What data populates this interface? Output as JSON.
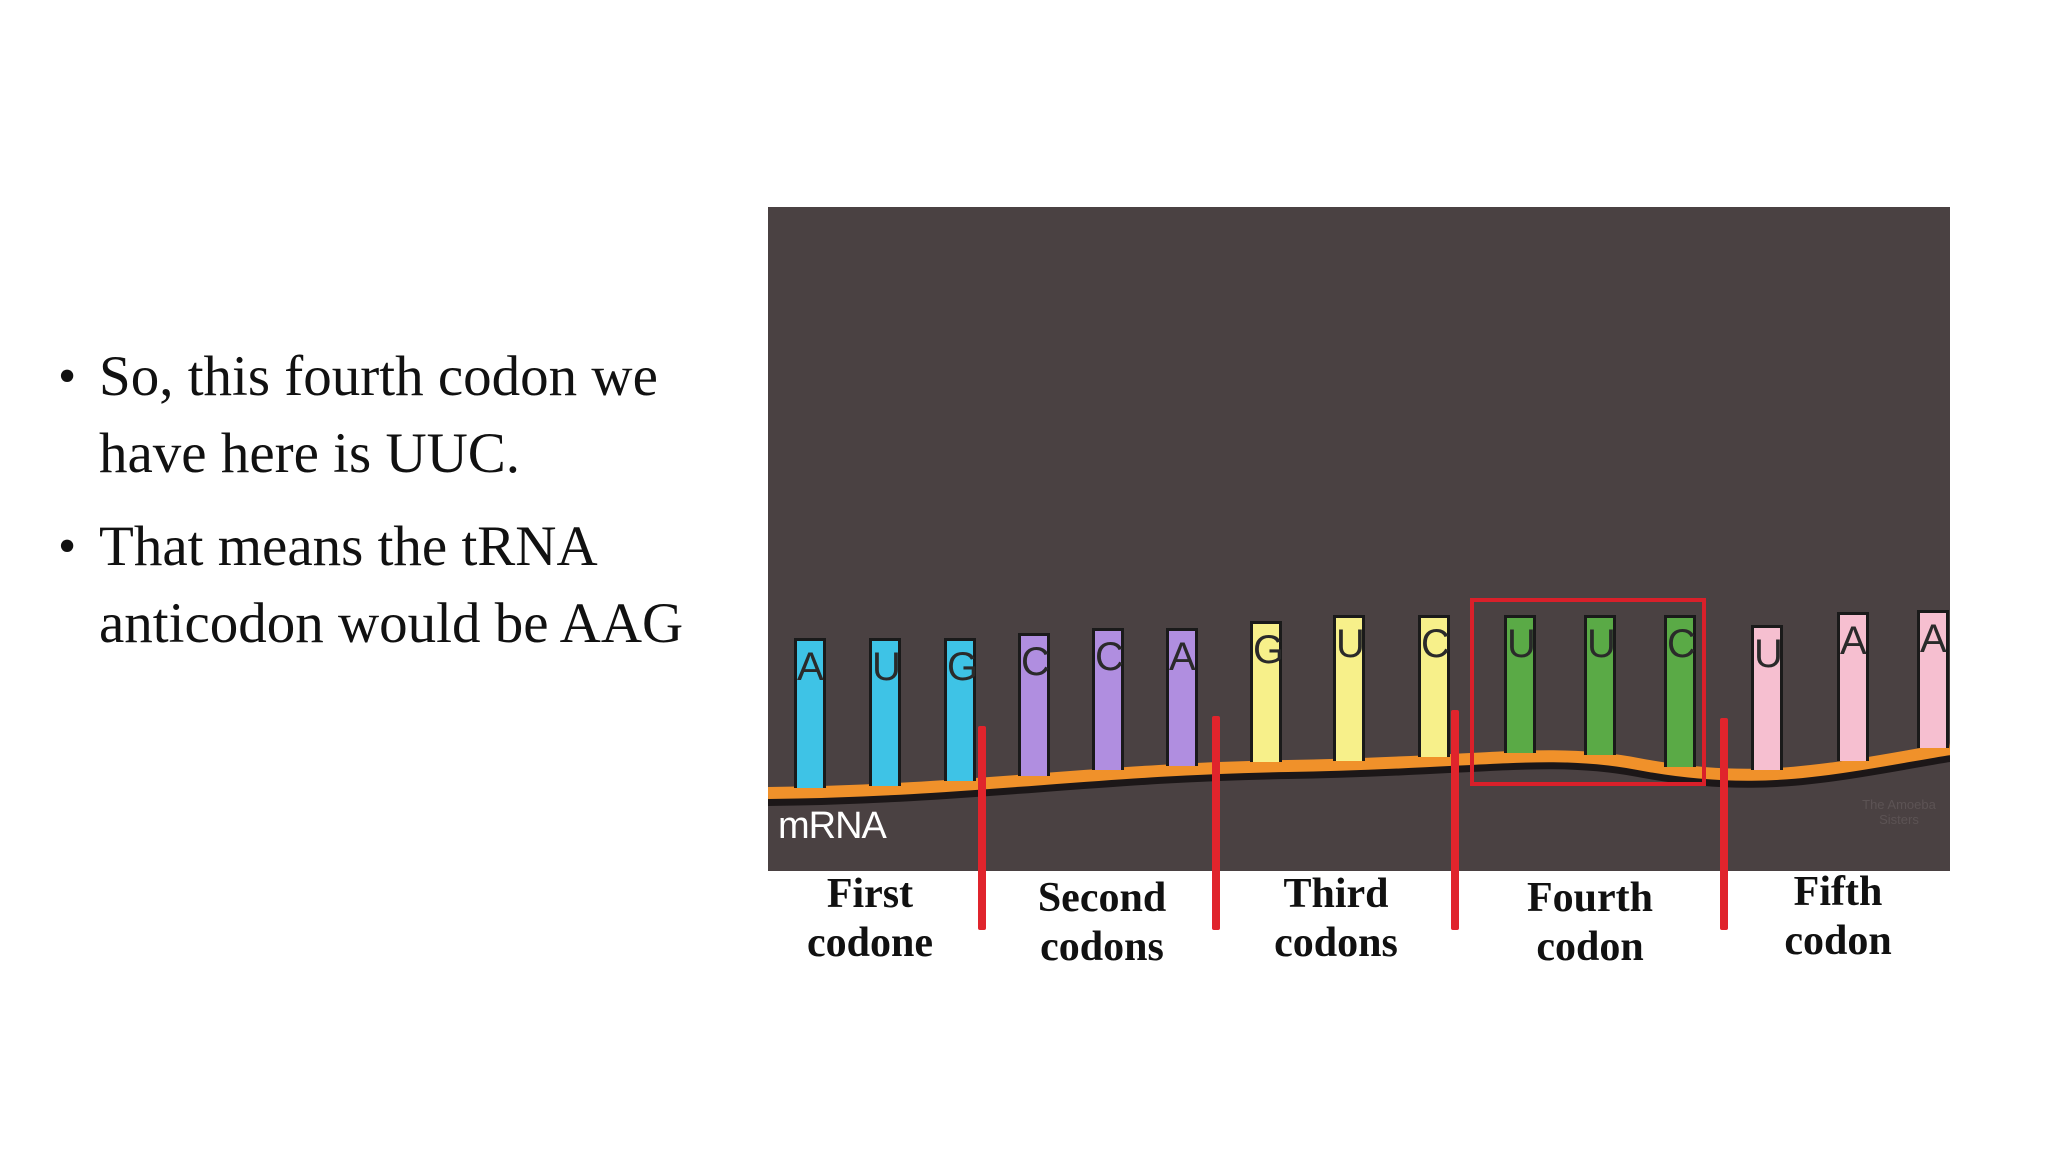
{
  "slide": {
    "bullets": [
      "So, this fourth codon we have here is UUC.",
      "That means the tRNA anticodon would be AAG"
    ],
    "bullet_glyph": "•"
  },
  "diagram": {
    "background": "#4a4142",
    "strand_color": "#f0912a",
    "mrna_label": "mRNA",
    "watermark": "The Amoeba Sisters",
    "bases": [
      {
        "letter": "A",
        "color": "#3ec3e6"
      },
      {
        "letter": "U",
        "color": "#3ec3e6"
      },
      {
        "letter": "G",
        "color": "#3ec3e6"
      },
      {
        "letter": "C",
        "color": "#b08ee0"
      },
      {
        "letter": "C",
        "color": "#b08ee0"
      },
      {
        "letter": "A",
        "color": "#b08ee0"
      },
      {
        "letter": "G",
        "color": "#f7f08a"
      },
      {
        "letter": "U",
        "color": "#f7f08a"
      },
      {
        "letter": "C",
        "color": "#f7f08a"
      },
      {
        "letter": "U",
        "color": "#5aaa46"
      },
      {
        "letter": "U",
        "color": "#5aaa46"
      },
      {
        "letter": "C",
        "color": "#5aaa46"
      },
      {
        "letter": "U",
        "color": "#f6bfd0"
      },
      {
        "letter": "A",
        "color": "#f6bfd0"
      },
      {
        "letter": "A",
        "color": "#f6bfd0"
      }
    ],
    "highlight_color": "#d9202a",
    "divider_color": "#e0242c",
    "codon_labels": [
      [
        "First",
        "codone"
      ],
      [
        "Second",
        "codons"
      ],
      [
        "Third",
        "codons"
      ],
      [
        "Fourth",
        "codon"
      ],
      [
        "Fifth",
        "codon"
      ]
    ]
  }
}
